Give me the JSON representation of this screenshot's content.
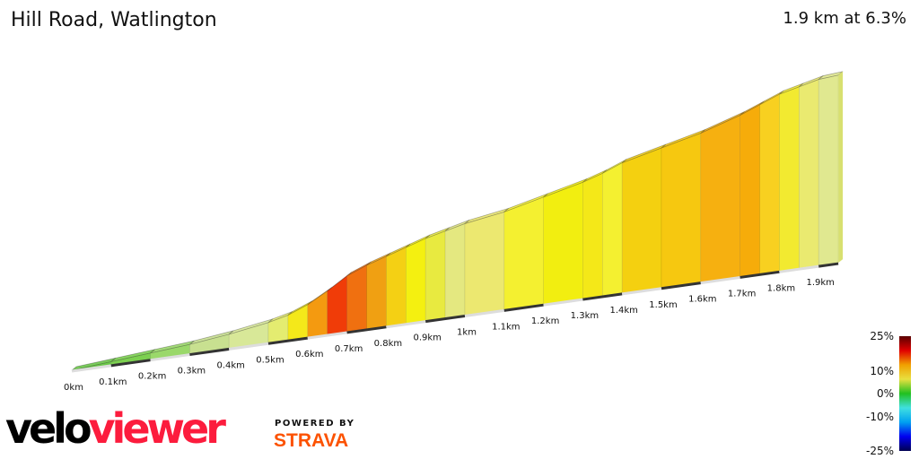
{
  "header": {
    "title": "Hill Road, Watlington",
    "summary": "1.9 km at 6.3%"
  },
  "chart_data": {
    "type": "area",
    "title": "Hill Road, Watlington",
    "xlabel": "",
    "ylabel": "",
    "x_unit": "km",
    "tick_labels": [
      "0km",
      "0.1km",
      "0.2km",
      "0.3km",
      "0.4km",
      "0.5km",
      "0.6km",
      "0.7km",
      "0.8km",
      "0.9km",
      "1km",
      "1.1km",
      "1.2km",
      "1.3km",
      "1.4km",
      "1.5km",
      "1.6km",
      "1.7km",
      "1.8km",
      "1.9km"
    ],
    "points": [
      {
        "km": 0,
        "elev": 0
      },
      {
        "km": 0.1,
        "elev": 2
      },
      {
        "km": 0.2,
        "elev": 4
      },
      {
        "km": 0.3,
        "elev": 6
      },
      {
        "km": 0.4,
        "elev": 9
      },
      {
        "km": 0.5,
        "elev": 13
      },
      {
        "km": 0.55,
        "elev": 16
      },
      {
        "km": 0.6,
        "elev": 21
      },
      {
        "km": 0.65,
        "elev": 28
      },
      {
        "km": 0.7,
        "elev": 36
      },
      {
        "km": 0.75,
        "elev": 41
      },
      {
        "km": 0.8,
        "elev": 45
      },
      {
        "km": 0.85,
        "elev": 49
      },
      {
        "km": 0.9,
        "elev": 53
      },
      {
        "km": 0.95,
        "elev": 56
      },
      {
        "km": 1.0,
        "elev": 59
      },
      {
        "km": 1.1,
        "elev": 63
      },
      {
        "km": 1.2,
        "elev": 69
      },
      {
        "km": 1.3,
        "elev": 75
      },
      {
        "km": 1.35,
        "elev": 79
      },
      {
        "km": 1.4,
        "elev": 84
      },
      {
        "km": 1.5,
        "elev": 90
      },
      {
        "km": 1.6,
        "elev": 96
      },
      {
        "km": 1.7,
        "elev": 104
      },
      {
        "km": 1.75,
        "elev": 109
      },
      {
        "km": 1.8,
        "elev": 114
      },
      {
        "km": 1.85,
        "elev": 117
      },
      {
        "km": 1.9,
        "elev": 120
      },
      {
        "km": 1.95,
        "elev": 121
      }
    ],
    "segment_colors": [
      "#6cc84a",
      "#7cd050",
      "#9ad86a",
      "#c8e090",
      "#d8e898",
      "#e4ec70",
      "#f4e81a",
      "#f49a10",
      "#f03c08",
      "#f07010",
      "#f0a012",
      "#f4d014",
      "#f4f010",
      "#e8ea40",
      "#e4e880",
      "#ece870",
      "#f4f030",
      "#f2ee10",
      "#f4e818",
      "#f4f030",
      "#f4d010",
      "#f6c810",
      "#f6b010",
      "#f6ac0a",
      "#f8d020",
      "#f2ea30",
      "#eaea70",
      "#e0e890"
    ],
    "legend": {
      "labels": [
        "25%",
        "10%",
        "0%",
        "-10%",
        "-25%"
      ],
      "placement": "bottom-right",
      "colors": [
        "#5a0000",
        "#e00000",
        "#f0a000",
        "#e8e040",
        "#20c020",
        "#40e0e0",
        "#00a0f0",
        "#0000f0",
        "#000050"
      ]
    }
  },
  "branding": {
    "logo_a": "velo",
    "logo_b": "viewer",
    "powered": "POWERED BY",
    "strava": "STRAVA"
  }
}
